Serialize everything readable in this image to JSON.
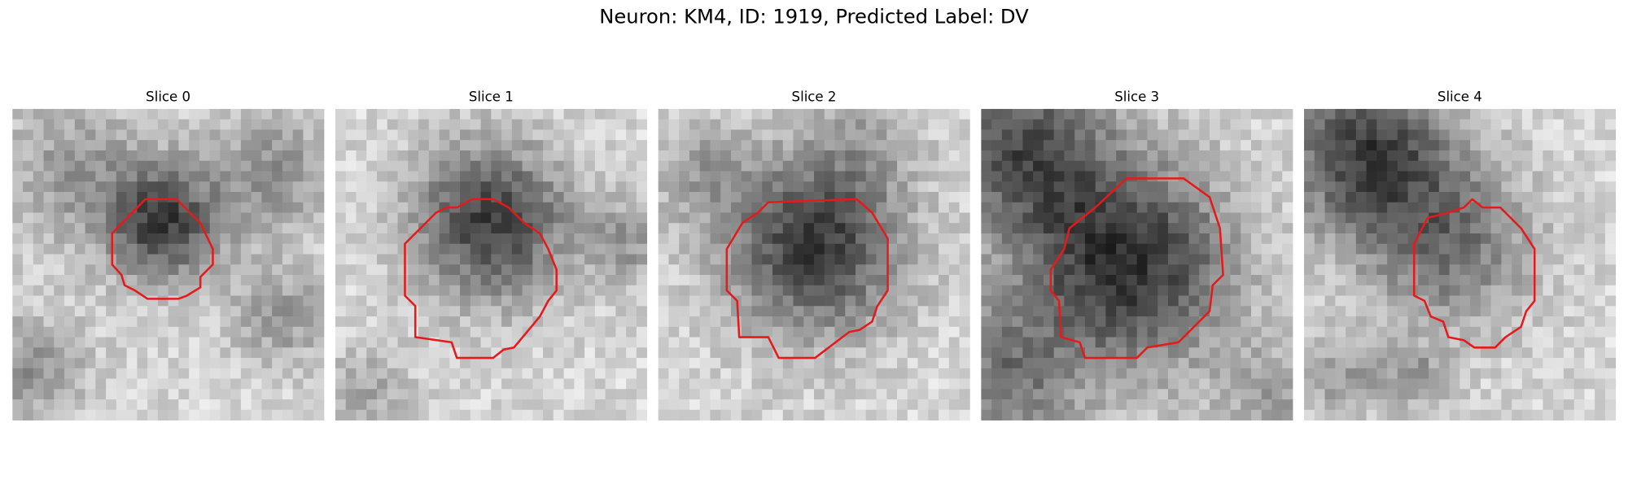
{
  "title": "Neuron: KM4, ID: 1919, Predicted Label: DV",
  "panels": [
    {
      "title": "Slice 0"
    },
    {
      "title": "Slice 1"
    },
    {
      "title": "Slice 2"
    },
    {
      "title": "Slice 3"
    },
    {
      "title": "Slice 4"
    }
  ]
}
